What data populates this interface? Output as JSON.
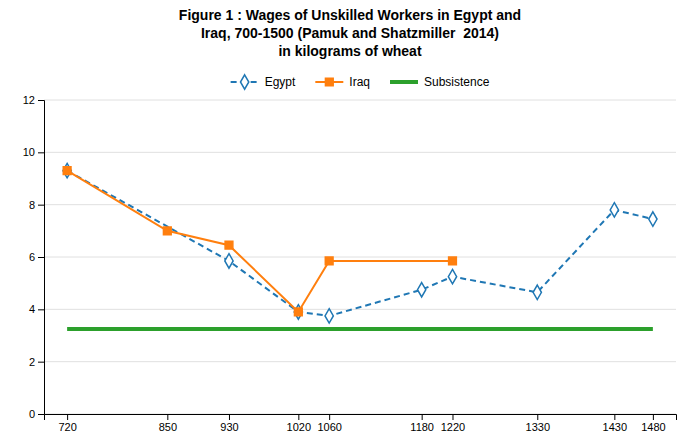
{
  "chart_data": {
    "type": "line",
    "title": "Figure 1 : Wages of Unskilled Workers in Egypt and\nIraq, 700-1500 (Pamuk and Shatzmiller  2014)\nin kilograms of wheat",
    "xlim": [
      690,
      1510
    ],
    "xticks": [
      720,
      850,
      930,
      1020,
      1060,
      1180,
      1220,
      1330,
      1430,
      1480
    ],
    "ylim": [
      0,
      12
    ],
    "yticks": [
      0,
      2,
      4,
      6,
      8,
      10,
      12
    ],
    "grid": true,
    "legend": "top",
    "series": [
      {
        "name": "Egypt",
        "x": [
          720,
          930,
          1020,
          1060,
          1180,
          1220,
          1330,
          1430,
          1480
        ],
        "values": [
          9.3,
          5.85,
          3.9,
          3.75,
          4.75,
          5.25,
          4.65,
          7.8,
          7.45
        ],
        "marker": "diamond",
        "line_style": "dashed"
      },
      {
        "name": "Iraq",
        "x": [
          720,
          850,
          930,
          1020,
          1060,
          1220
        ],
        "values": [
          9.3,
          7.0,
          6.45,
          3.9,
          5.85,
          5.85
        ],
        "marker": "square",
        "line_style": "solid"
      },
      {
        "name": "Subsistence",
        "type": "hline",
        "values": [
          3.25
        ],
        "line_style": "solid"
      }
    ]
  }
}
